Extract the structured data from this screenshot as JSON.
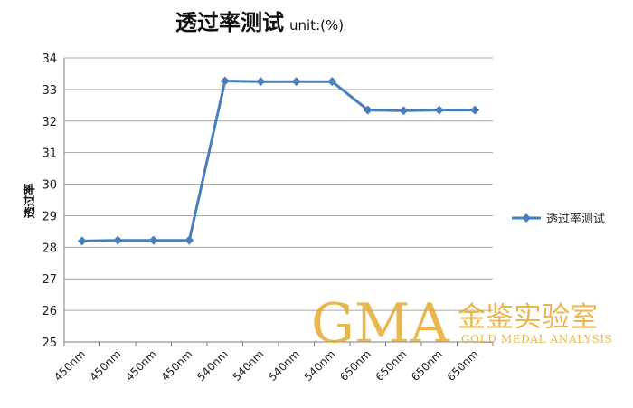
{
  "chart_data": {
    "type": "line",
    "title": "透过率测试",
    "title_unit": "unit:(%)",
    "xlabel": "",
    "ylabel": "透过率",
    "categories": [
      "450nm",
      "450nm",
      "450nm",
      "450nm",
      "540nm",
      "540nm",
      "540nm",
      "540nm",
      "650nm",
      "650nm",
      "650nm",
      "650nm"
    ],
    "series": [
      {
        "name": "透过率测试",
        "values": [
          28.2,
          28.22,
          28.22,
          28.22,
          33.27,
          33.25,
          33.25,
          33.25,
          32.35,
          32.33,
          32.35,
          32.35
        ]
      }
    ],
    "ylim": [
      25,
      34
    ],
    "yticks": [
      "25",
      "26",
      "27",
      "28",
      "29",
      "30",
      "31",
      "32",
      "33",
      "34"
    ],
    "grid": true,
    "legend_position": "right",
    "colors": {
      "series": "#4a7ebb",
      "grid": "#a6a6a6",
      "axis": "#7f7f7f"
    }
  },
  "watermark": {
    "logo": "GMA",
    "cn": "金鉴实验室",
    "en": "GOLD MEDAL ANALYSIS",
    "color": "#e3a82a"
  }
}
